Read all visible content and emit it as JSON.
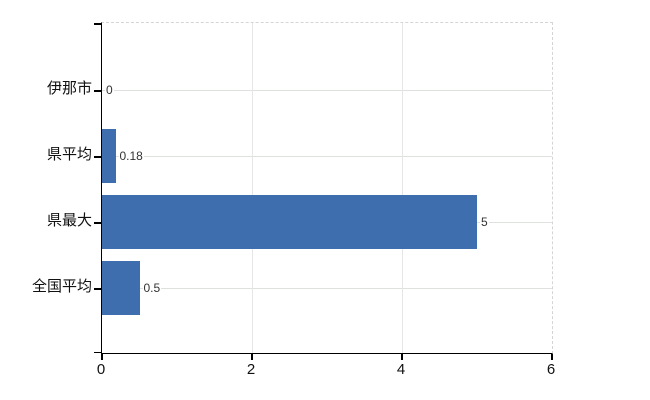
{
  "chart_data": {
    "type": "bar",
    "orientation": "horizontal",
    "title": "",
    "categories": [
      "伊那市",
      "県平均",
      "県最大",
      "全国平均"
    ],
    "values": [
      0,
      0.18,
      5,
      0.5
    ],
    "value_labels": [
      "0",
      "0.18",
      "5",
      "0.5"
    ],
    "x_ticks": [
      0,
      2,
      4,
      6
    ],
    "x_tick_labels": [
      "0",
      "2",
      "4",
      "6"
    ],
    "xlim": [
      0,
      6
    ],
    "grid": true,
    "legend": false,
    "bar_color": "#3f6eae",
    "axis_color": "#000000",
    "hgrid_color": "#dde2dd",
    "vgrid_color": "#e6e6e6",
    "border_color": "#d5d5d5",
    "value_label_color": "#333333",
    "tick_label_color": "#111111"
  }
}
